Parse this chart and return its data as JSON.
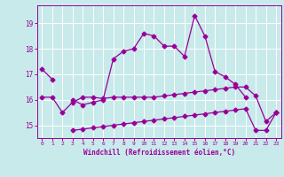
{
  "xlabel": "Windchill (Refroidissement éolien,°C)",
  "bg_color": "#c8eaea",
  "grid_color": "#ffffff",
  "line_color": "#990099",
  "hours": [
    0,
    1,
    2,
    3,
    4,
    5,
    6,
    7,
    8,
    9,
    10,
    11,
    12,
    13,
    14,
    15,
    16,
    17,
    18,
    19,
    20,
    21,
    22,
    23
  ],
  "line1": [
    17.2,
    16.8,
    null,
    16.0,
    15.8,
    15.9,
    16.0,
    17.6,
    17.9,
    18.0,
    18.6,
    18.5,
    18.1,
    18.1,
    17.7,
    19.3,
    18.5,
    17.1,
    16.9,
    16.6,
    16.1,
    null,
    null,
    15.5
  ],
  "line2": [
    16.1,
    16.1,
    15.5,
    15.9,
    16.1,
    16.1,
    16.05,
    16.1,
    16.1,
    16.1,
    16.1,
    16.1,
    16.15,
    16.2,
    16.25,
    16.3,
    16.35,
    16.4,
    16.45,
    16.5,
    16.5,
    16.15,
    15.15,
    15.5
  ],
  "line3": [
    null,
    null,
    null,
    14.8,
    14.85,
    14.9,
    14.95,
    15.0,
    15.05,
    15.1,
    15.15,
    15.2,
    15.25,
    15.3,
    15.35,
    15.4,
    15.45,
    15.5,
    15.55,
    15.6,
    15.65,
    14.8,
    14.8,
    15.5
  ],
  "ylim": [
    14.5,
    19.7
  ],
  "yticks": [
    15,
    16,
    17,
    18,
    19
  ],
  "xticks": [
    0,
    1,
    2,
    3,
    4,
    5,
    6,
    7,
    8,
    9,
    10,
    11,
    12,
    13,
    14,
    15,
    16,
    17,
    18,
    19,
    20,
    21,
    22,
    23
  ]
}
